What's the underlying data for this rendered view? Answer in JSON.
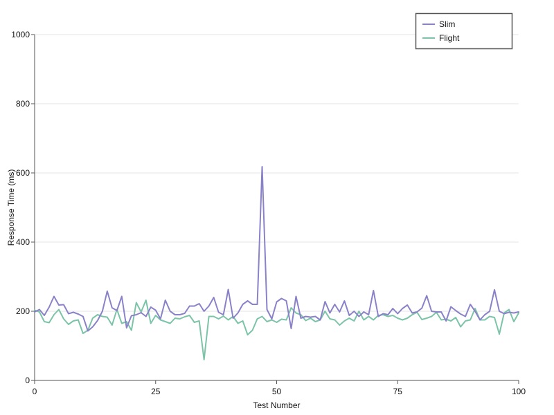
{
  "colors": {
    "slim": "#8a82c8",
    "flight": "#7cc4a8",
    "grid": "#e6e6e6",
    "axis": "#555555"
  },
  "chart_data": {
    "type": "line",
    "xlabel": "Test Number",
    "ylabel": "Response Time (ms)",
    "xlim": [
      0,
      100
    ],
    "ylim": [
      0,
      1000
    ],
    "x_ticks": [
      0,
      25,
      50,
      75,
      100
    ],
    "y_ticks": [
      0,
      200,
      400,
      600,
      800,
      1000
    ],
    "grid": "horizontal",
    "legend_position": "top-right",
    "series": [
      {
        "name": "Slim",
        "color": "#8a82c8",
        "values": [
          198,
          205,
          188,
          212,
          243,
          218,
          219,
          193,
          197,
          192,
          185,
          143,
          155,
          173,
          200,
          258,
          210,
          202,
          243,
          152,
          187,
          190,
          196,
          185,
          212,
          203,
          178,
          232,
          200,
          190,
          190,
          194,
          215,
          215,
          222,
          200,
          215,
          240,
          197,
          190,
          263,
          180,
          195,
          220,
          230,
          220,
          220,
          618,
          205,
          178,
          227,
          237,
          230,
          150,
          243,
          180,
          185,
          183,
          185,
          175,
          228,
          195,
          220,
          198,
          230,
          188,
          200,
          185,
          198,
          190,
          260,
          185,
          193,
          190,
          208,
          193,
          208,
          218,
          195,
          198,
          209,
          245,
          200,
          198,
          198,
          172,
          213,
          202,
          192,
          185,
          220,
          200,
          175,
          190,
          200,
          262,
          200,
          193,
          197,
          195,
          198
        ]
      },
      {
        "name": "Flight",
        "color": "#7cc4a8",
        "values": [
          203,
          198,
          170,
          167,
          190,
          205,
          178,
          162,
          172,
          175,
          136,
          145,
          180,
          190,
          185,
          183,
          160,
          205,
          165,
          170,
          145,
          225,
          198,
          232,
          165,
          188,
          175,
          170,
          165,
          180,
          178,
          184,
          188,
          168,
          172,
          60,
          185,
          185,
          178,
          186,
          175,
          185,
          165,
          172,
          132,
          145,
          178,
          185,
          170,
          175,
          168,
          177,
          175,
          210,
          195,
          190,
          173,
          180,
          170,
          175,
          200,
          178,
          175,
          160,
          172,
          180,
          172,
          200,
          175,
          185,
          175,
          188,
          190,
          185,
          188,
          180,
          175,
          180,
          190,
          197,
          176,
          180,
          185,
          197,
          175,
          177,
          172,
          182,
          155,
          172,
          175,
          208,
          175,
          175,
          185,
          182,
          134,
          195,
          205,
          170,
          195
        ]
      }
    ]
  }
}
